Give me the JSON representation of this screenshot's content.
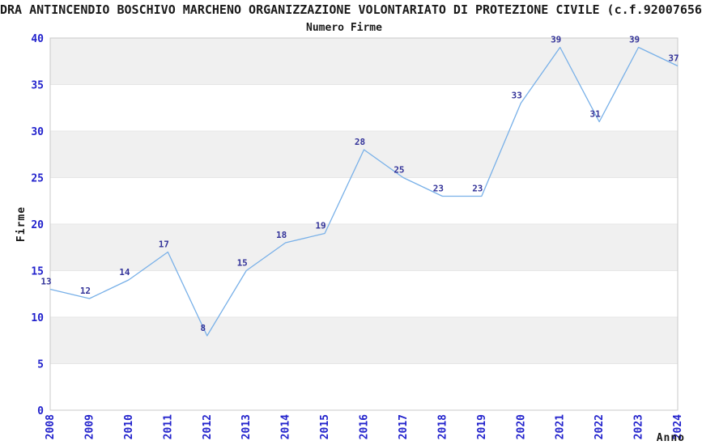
{
  "chart_data": {
    "type": "line",
    "title": "DRA ANTINCENDIO BOSCHIVO MARCHENO ORGANIZZAZIONE VOLONTARIATO DI PROTEZIONE CIVILE (c.f.92007656",
    "subtitle": "Numero Firme",
    "xlabel": "Anno",
    "ylabel": "Firme",
    "categories": [
      "2008",
      "2009",
      "2010",
      "2011",
      "2012",
      "2013",
      "2014",
      "2015",
      "2016",
      "2017",
      "2018",
      "2019",
      "2020",
      "2021",
      "2022",
      "2023",
      "2024"
    ],
    "values": [
      13,
      12,
      14,
      17,
      8,
      15,
      18,
      19,
      28,
      25,
      23,
      23,
      33,
      39,
      31,
      39,
      37
    ],
    "ylim": [
      0,
      40
    ],
    "ytick_step": 5,
    "grid": "horizontal-alternating-bands",
    "legend": "none",
    "colors": {
      "line": "#78b0e8",
      "tick_label": "#2222cc",
      "data_label": "#333399",
      "band": "#f0f0f0",
      "gridline": "#e6e6e6",
      "plot_border": "#c9c9c9",
      "text": "#1a1a1a",
      "background": "#ffffff"
    }
  }
}
